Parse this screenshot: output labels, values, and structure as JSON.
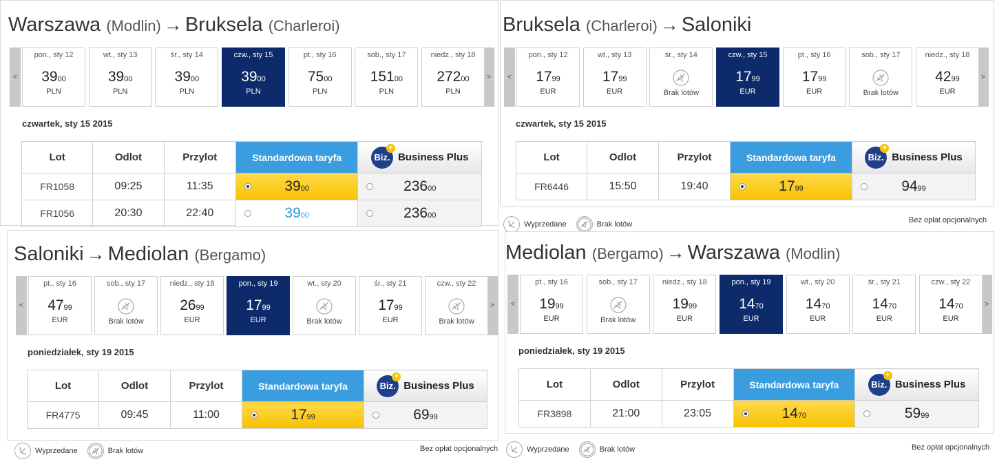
{
  "colors": {
    "selected_day": "#0d2a6b",
    "standard_header": "#3a9ddf",
    "standard_cell": "#f7c200",
    "lowest_price": "#2e9bd9"
  },
  "legend": {
    "sold_out": "Wyprzedane",
    "no_flights": "Brak lotów",
    "no_fees": "Bez opłat opcjonalnych"
  },
  "columns": {
    "flight": "Lot",
    "departure": "Odlot",
    "arrival": "Przylot",
    "standard": "Standardowa taryfa",
    "business": "Business Plus",
    "biz_badge": "Biz.",
    "biz_plus": "+"
  },
  "nav": {
    "prev": "<",
    "next": ">"
  },
  "panels": [
    {
      "from": "Warszawa",
      "from_sub": "(Modlin)",
      "arrow": "→",
      "to": "Bruksela",
      "to_sub": "(Charleroi)",
      "date_label": "czwartek, sty 15 2015",
      "days": [
        {
          "label": "pon., sty 12",
          "int": "39",
          "dec": "00",
          "cur": "PLN"
        },
        {
          "label": "wt., sty 13",
          "int": "39",
          "dec": "00",
          "cur": "PLN"
        },
        {
          "label": "śr., sty 14",
          "int": "39",
          "dec": "00",
          "cur": "PLN"
        },
        {
          "label": "czw., sty 15",
          "int": "39",
          "dec": "00",
          "cur": "PLN",
          "selected": true
        },
        {
          "label": "pt., sty 16",
          "int": "75",
          "dec": "00",
          "cur": "PLN"
        },
        {
          "label": "sob., sty 17",
          "int": "151",
          "dec": "00",
          "cur": "PLN"
        },
        {
          "label": "niedz., sty 18",
          "int": "272",
          "dec": "00",
          "cur": "PLN"
        }
      ],
      "flights": [
        {
          "no": "FR1058",
          "dep": "09:25",
          "arr": "11:35",
          "std_int": "39",
          "std_dec": "00",
          "biz_int": "236",
          "biz_dec": "00",
          "selected": true
        },
        {
          "no": "FR1056",
          "dep": "20:30",
          "arr": "22:40",
          "std_int": "39",
          "std_dec": "00",
          "biz_int": "236",
          "biz_dec": "00",
          "selected": false
        }
      ]
    },
    {
      "from": "Bruksela",
      "from_sub": "(Charleroi)",
      "arrow": "→",
      "to": "Saloniki",
      "to_sub": "",
      "date_label": "czwartek, sty 15 2015",
      "days": [
        {
          "label": "pon., sty 12",
          "int": "17",
          "dec": "99",
          "cur": "EUR"
        },
        {
          "label": "wt., sty 13",
          "int": "17",
          "dec": "99",
          "cur": "EUR"
        },
        {
          "label": "śr., sty 14",
          "none": "Brak lotów"
        },
        {
          "label": "czw., sty 15",
          "int": "17",
          "dec": "99",
          "cur": "EUR",
          "selected": true
        },
        {
          "label": "pt., sty 16",
          "int": "17",
          "dec": "99",
          "cur": "EUR"
        },
        {
          "label": "sob., sty 17",
          "none": "Brak lotów"
        },
        {
          "label": "niedz., sty 18",
          "int": "42",
          "dec": "99",
          "cur": "EUR"
        }
      ],
      "flights": [
        {
          "no": "FR6446",
          "dep": "15:50",
          "arr": "19:40",
          "std_int": "17",
          "std_dec": "99",
          "biz_int": "94",
          "biz_dec": "99",
          "selected": true
        }
      ]
    },
    {
      "from": "Saloniki",
      "from_sub": "",
      "arrow": "→",
      "to": "Mediolan",
      "to_sub": "(Bergamo)",
      "date_label": "poniedziałek, sty 19 2015",
      "days": [
        {
          "label": "pt., sty 16",
          "int": "47",
          "dec": "99",
          "cur": "EUR"
        },
        {
          "label": "sob., sty 17",
          "none": "Brak lotów"
        },
        {
          "label": "niedz., sty 18",
          "int": "26",
          "dec": "99",
          "cur": "EUR"
        },
        {
          "label": "pon., sty 19",
          "int": "17",
          "dec": "99",
          "cur": "EUR",
          "selected": true
        },
        {
          "label": "wt., sty 20",
          "none": "Brak lotów"
        },
        {
          "label": "śr., sty 21",
          "int": "17",
          "dec": "99",
          "cur": "EUR"
        },
        {
          "label": "czw., sty 22",
          "none": "Brak lotów"
        }
      ],
      "flights": [
        {
          "no": "FR4775",
          "dep": "09:45",
          "arr": "11:00",
          "std_int": "17",
          "std_dec": "99",
          "biz_int": "69",
          "biz_dec": "99",
          "selected": true
        }
      ]
    },
    {
      "from": "Mediolan",
      "from_sub": "(Bergamo)",
      "arrow": "→",
      "to": "Warszawa",
      "to_sub": "(Modlin)",
      "date_label": "poniedziałek, sty 19 2015",
      "days": [
        {
          "label": "pt., sty 16",
          "int": "19",
          "dec": "99",
          "cur": "EUR"
        },
        {
          "label": "sob., sty 17",
          "none": "Brak lotów"
        },
        {
          "label": "niedz., sty 18",
          "int": "19",
          "dec": "99",
          "cur": "EUR"
        },
        {
          "label": "pon., sty 19",
          "int": "14",
          "dec": "70",
          "cur": "EUR",
          "selected": true
        },
        {
          "label": "wt., sty 20",
          "int": "14",
          "dec": "70",
          "cur": "EUR"
        },
        {
          "label": "śr., sty 21",
          "int": "14",
          "dec": "70",
          "cur": "EUR"
        },
        {
          "label": "czw., sty 22",
          "int": "14",
          "dec": "70",
          "cur": "EUR"
        }
      ],
      "flights": [
        {
          "no": "FR3898",
          "dep": "21:00",
          "arr": "23:05",
          "std_int": "14",
          "std_dec": "70",
          "biz_int": "59",
          "biz_dec": "99",
          "selected": true
        }
      ]
    }
  ]
}
